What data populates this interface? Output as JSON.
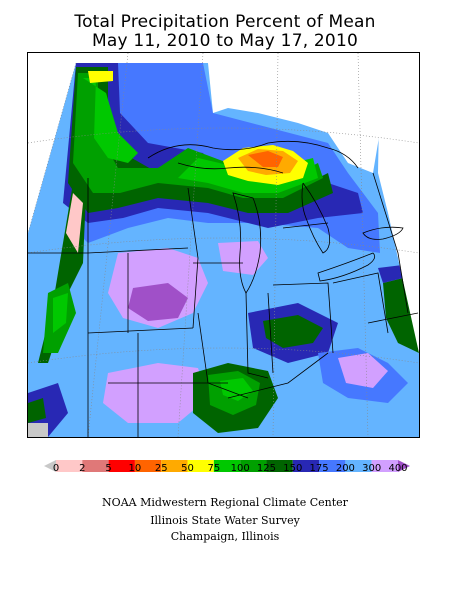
{
  "title_line1": "Total Precipitation Percent of Mean",
  "title_line2": "May 11, 2010 to May 17, 2010",
  "legend": {
    "labels": [
      "0",
      "2",
      "5",
      "10",
      "25",
      "50",
      "75",
      "100",
      "125",
      "150",
      "175",
      "200",
      "300",
      "400"
    ],
    "colors": [
      "#c8c8c8",
      "#ffc8c8",
      "#e07878",
      "#ff0000",
      "#ff6400",
      "#ffaa00",
      "#ffff00",
      "#00c800",
      "#00a000",
      "#006400",
      "#2828b4",
      "#4678ff",
      "#64b4ff",
      "#d2a0ff",
      "#a050c8"
    ]
  },
  "credits": {
    "line1": "NOAA Midwestern Regional Climate Center",
    "line2": "Illinois State Water Survey",
    "line3": "Champaign, Illinois"
  },
  "map_colors": {
    "background": "#64b4ff",
    "gray_edge": "#c8c8c8"
  }
}
